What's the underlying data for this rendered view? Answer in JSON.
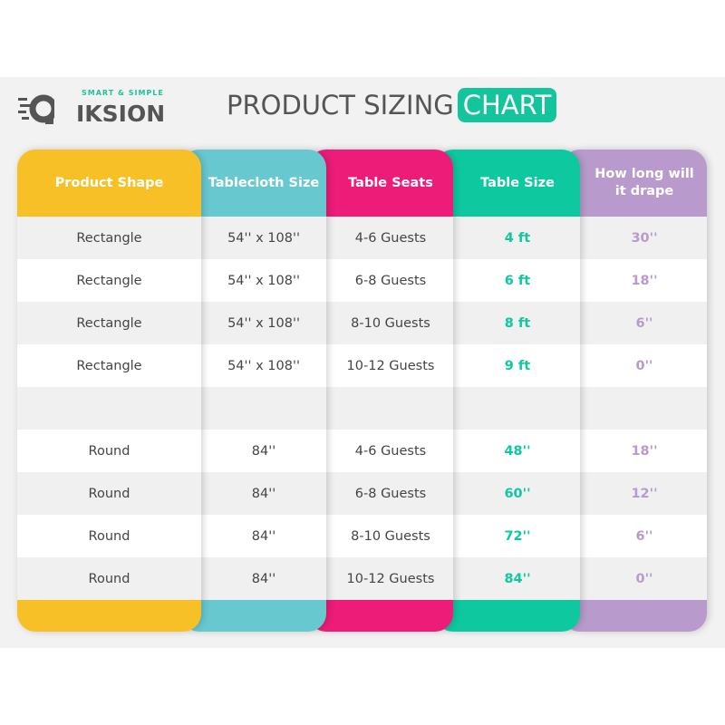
{
  "brand": {
    "tagline": "SMART & SIMPLE",
    "name": "IKSION"
  },
  "title": {
    "main": "PRODUCT SIZING",
    "highlight": "CHART"
  },
  "colors": {
    "shape": "#f6c026",
    "size": "#68c8d0",
    "seats": "#ec1c78",
    "table": "#0ec9a0",
    "drape": "#b89bcc"
  },
  "columns": [
    {
      "key": "shape",
      "header": "Product Shape",
      "values": [
        "Rectangle",
        "Rectangle",
        "Rectangle",
        "Rectangle",
        "",
        "Round",
        "Round",
        "Round",
        "Round"
      ]
    },
    {
      "key": "size",
      "header": "Tablecloth Size",
      "values": [
        "54'' x 108''",
        "54'' x 108''",
        "54'' x 108''",
        "54'' x 108''",
        "",
        "84''",
        "84''",
        "84''",
        "84''"
      ]
    },
    {
      "key": "seats",
      "header": "Table Seats",
      "values": [
        "4-6 Guests",
        "6-8 Guests",
        "8-10 Guests",
        "10-12 Guests",
        "",
        "4-6 Guests",
        "6-8 Guests",
        "8-10 Guests",
        "10-12 Guests"
      ]
    },
    {
      "key": "table",
      "header": "Table Size",
      "values": [
        "4 ft",
        "6 ft",
        "8 ft",
        "9 ft",
        "",
        "48''",
        "60''",
        "72''",
        "84''"
      ]
    },
    {
      "key": "drape",
      "header": "How long will it drape",
      "values": [
        "30''",
        "18''",
        "6''",
        "0''",
        "",
        "18''",
        "12''",
        "6''",
        "0''"
      ]
    }
  ]
}
